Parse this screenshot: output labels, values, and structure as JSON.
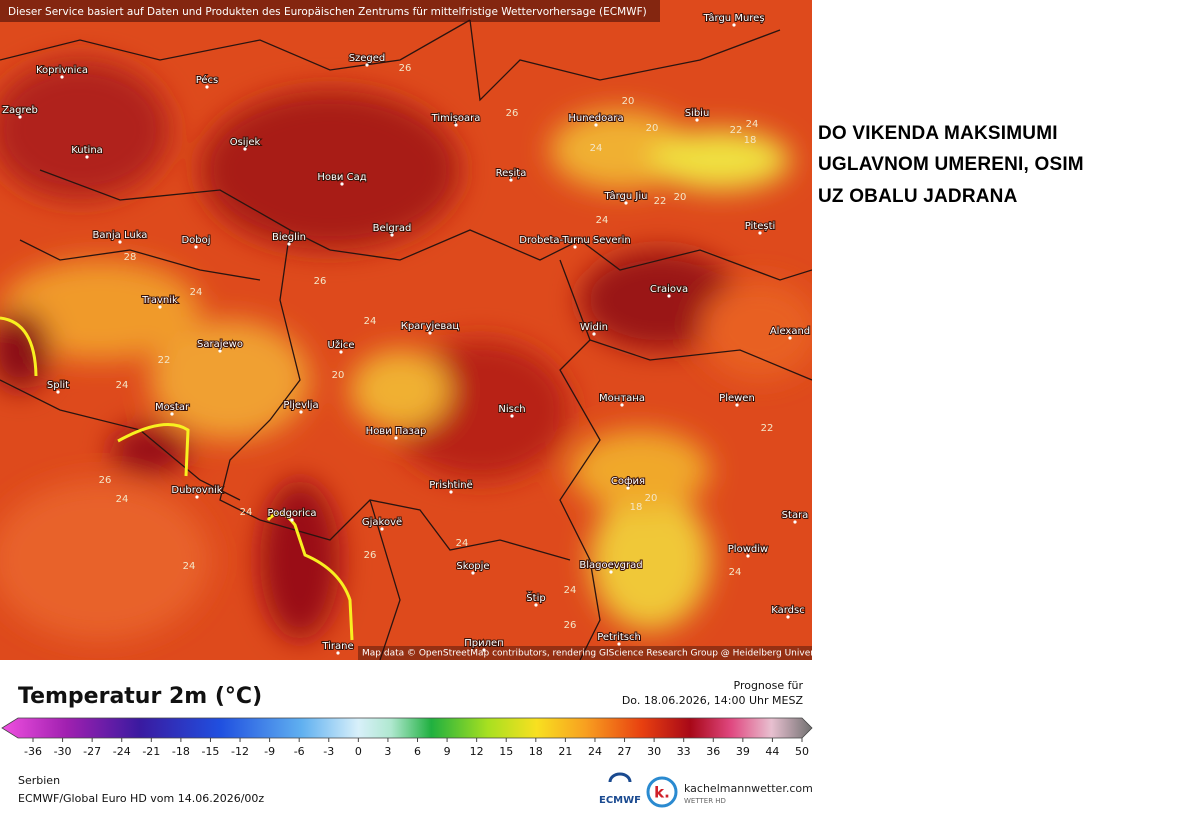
{
  "header": {
    "notice": "Dieser Service basiert auf Daten und Produkten des Europäischen Zentrums für mittelfristige Wettervorhersage (ECMWF)",
    "attribution": "Map data © OpenStreetMap contributors, rendering GIScience Research Group @ Heidelberg University"
  },
  "map": {
    "cities": [
      "Koprivnica",
      "Pécs",
      "Szeged",
      "Zagreb",
      "Osijek",
      "Timișoara",
      "Hunedoara",
      "Sibiu",
      "Kutina",
      "Нови Сад",
      "Reșița",
      "Târgu Jiu",
      "Pitești",
      "Banja Luka",
      "Doboj",
      "Bieglin",
      "Belgrad",
      "Drobeta-Turnu Severin",
      "Craiova",
      "Travnik",
      "Крагујевац",
      "Widin",
      "Alexand",
      "Sarajewo",
      "Užice",
      "Split",
      "Mostar",
      "Pljevlja",
      "Nisch",
      "Монтана",
      "Plewen",
      "Нови Пазар",
      "Dubrovnik",
      "Prishtinë",
      "София",
      "Podgorica",
      "Gjakovë",
      "Plowdiw",
      "Skopje",
      "Blagoevgrad",
      "Štip",
      "Petritsch",
      "Прилеп",
      "Tirane",
      "Târgu Mureș",
      "Kardsc",
      "Stara"
    ],
    "contour_labels": [
      26,
      26,
      20,
      20,
      24,
      22,
      24,
      18,
      22,
      20,
      24,
      28,
      24,
      26,
      24,
      22,
      20,
      24,
      26,
      24,
      24,
      24,
      26,
      24,
      24,
      20,
      18,
      22,
      24,
      26
    ]
  },
  "annotation": {
    "lines": [
      "DO VIKENDA MAKSIMUMI",
      "UGLAVNOM UMERENI, OSIM",
      "UZ OBALU JADRANA"
    ]
  },
  "legend": {
    "title": "Temperatur 2m (°C)",
    "forecast_label": "Prognose für",
    "forecast_time": "Do. 18.06.2026, 14:00 Uhr MESZ",
    "scale": [
      -36,
      -30,
      -27,
      -24,
      -21,
      -18,
      -15,
      -12,
      -9,
      -6,
      -3,
      0,
      3,
      6,
      9,
      12,
      15,
      18,
      21,
      24,
      27,
      30,
      33,
      36,
      39,
      44,
      50
    ]
  },
  "footer": {
    "region": "Serbien",
    "model": "ECMWF/Global Euro HD vom 14.06.2026/00z",
    "ecmwf": "ECMWF",
    "site": "kachelmannwetter.com",
    "site_sub": "WETTER HD",
    "logo": "k."
  }
}
